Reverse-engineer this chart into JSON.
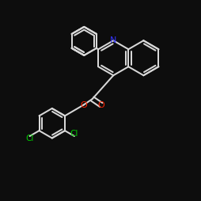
{
  "bg_color": "#0d0d0d",
  "bond_color": "#d8d8d8",
  "n_color": "#3333ff",
  "o_color": "#ff2200",
  "cl_color": "#00cc00",
  "lw": 1.45,
  "dbl_off": 0.013,
  "fig_size": 2.5,
  "dpi": 100
}
